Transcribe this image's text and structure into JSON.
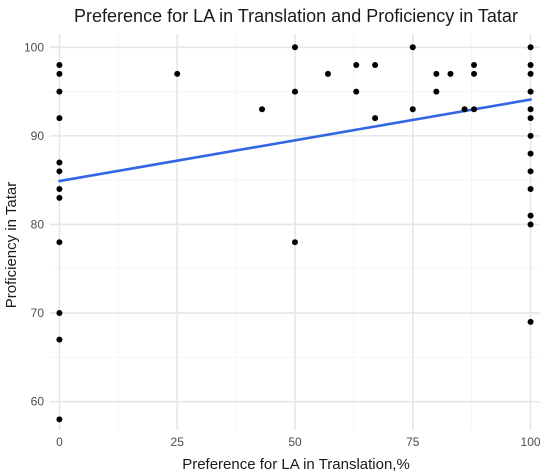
{
  "chart_data": {
    "type": "scatter",
    "title": "Preference for LA in Translation and Proficiency in Tatar",
    "xlabel": "Preference for LA in Translation,%",
    "ylabel": "Proficiency in Tatar",
    "xlim": [
      -2,
      102
    ],
    "ylim": [
      56.8,
      101.5
    ],
    "x_ticks": [
      0,
      25,
      50,
      75,
      100
    ],
    "y_ticks": [
      60,
      70,
      80,
      90,
      100
    ],
    "grid": true,
    "legend": "none",
    "point_color": "#000000",
    "trend_color": "#3366e6",
    "points": [
      {
        "x": 0,
        "y": 98
      },
      {
        "x": 0,
        "y": 97
      },
      {
        "x": 0,
        "y": 95
      },
      {
        "x": 0,
        "y": 92
      },
      {
        "x": 0,
        "y": 87
      },
      {
        "x": 0,
        "y": 86
      },
      {
        "x": 0,
        "y": 84
      },
      {
        "x": 0,
        "y": 83
      },
      {
        "x": 0,
        "y": 78
      },
      {
        "x": 0,
        "y": 70
      },
      {
        "x": 0,
        "y": 67
      },
      {
        "x": 0,
        "y": 58
      },
      {
        "x": 25,
        "y": 97
      },
      {
        "x": 43,
        "y": 93
      },
      {
        "x": 50,
        "y": 100
      },
      {
        "x": 50,
        "y": 95
      },
      {
        "x": 50,
        "y": 78
      },
      {
        "x": 57,
        "y": 97
      },
      {
        "x": 63,
        "y": 98
      },
      {
        "x": 63,
        "y": 95
      },
      {
        "x": 67,
        "y": 98
      },
      {
        "x": 67,
        "y": 92
      },
      {
        "x": 75,
        "y": 100
      },
      {
        "x": 75,
        "y": 93
      },
      {
        "x": 80,
        "y": 97
      },
      {
        "x": 80,
        "y": 95
      },
      {
        "x": 83,
        "y": 97
      },
      {
        "x": 86,
        "y": 93
      },
      {
        "x": 88,
        "y": 98
      },
      {
        "x": 88,
        "y": 97
      },
      {
        "x": 88,
        "y": 93
      },
      {
        "x": 100,
        "y": 100
      },
      {
        "x": 100,
        "y": 98
      },
      {
        "x": 100,
        "y": 97
      },
      {
        "x": 100,
        "y": 95
      },
      {
        "x": 100,
        "y": 93
      },
      {
        "x": 100,
        "y": 92
      },
      {
        "x": 100,
        "y": 90
      },
      {
        "x": 100,
        "y": 88
      },
      {
        "x": 100,
        "y": 86
      },
      {
        "x": 100,
        "y": 84
      },
      {
        "x": 100,
        "y": 81
      },
      {
        "x": 100,
        "y": 80
      },
      {
        "x": 100,
        "y": 69
      }
    ],
    "trend_line": {
      "x": [
        0,
        100
      ],
      "y": [
        84.9,
        94.1
      ]
    }
  }
}
